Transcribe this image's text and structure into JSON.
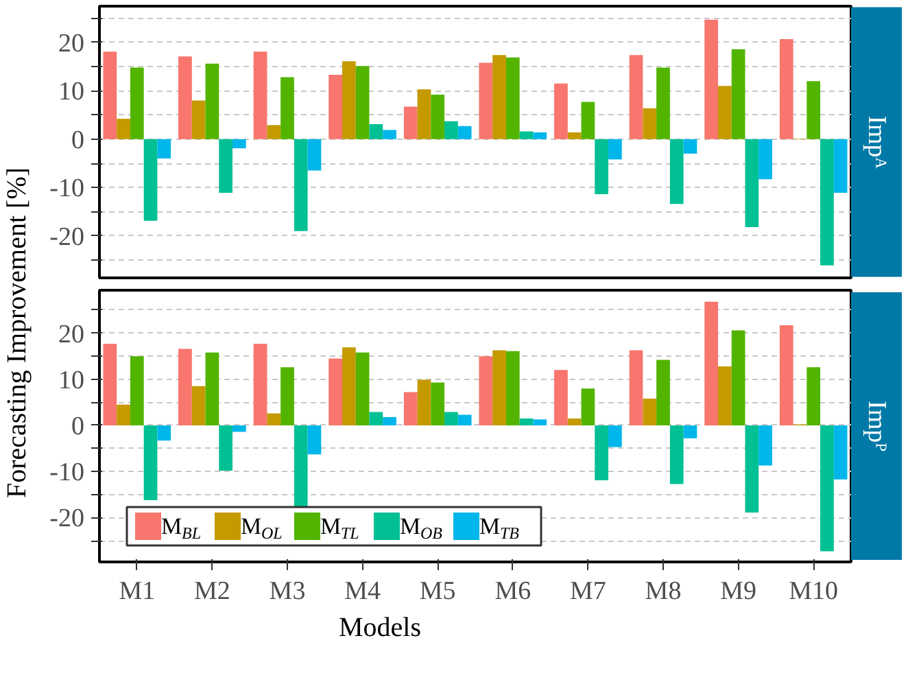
{
  "chart_data": [
    {
      "type": "bar",
      "title": "Impᴬ",
      "ylabel": "Forecasting Improvement [%]",
      "categories": [
        null,
        null,
        null,
        null,
        null,
        null,
        null,
        null,
        null,
        null
      ],
      "series": [
        {
          "color": "#f8766d",
          "values": [
            18.1,
            17.1,
            18.1,
            13.3,
            6.7,
            15.8,
            11.5,
            17.4,
            24.7,
            20.7
          ]
        },
        {
          "color": "#c49a00",
          "values": [
            4.2,
            8.0,
            2.9,
            16.1,
            10.3,
            17.4,
            1.4,
            6.4,
            11.0,
            0.1
          ]
        },
        {
          "color": "#53b400",
          "values": [
            14.8,
            15.6,
            12.8,
            15.1,
            9.2,
            16.9,
            7.7,
            14.8,
            18.6,
            12.0
          ]
        },
        {
          "color": "#00c094",
          "values": [
            -16.9,
            -11.1,
            -19.0,
            3.1,
            3.7,
            1.6,
            -11.4,
            -13.4,
            -18.2,
            -26.1
          ]
        },
        {
          "color": "#00b6eb",
          "values": [
            -4.0,
            -1.9,
            -6.5,
            1.9,
            2.7,
            1.4,
            -4.2,
            -3.0,
            -8.3,
            -11.1
          ]
        }
      ],
      "ylim": [
        -28.7,
        27.5
      ],
      "yticks": [
        {
          "value": -25,
          "label": null
        },
        -20,
        {
          "value": -15,
          "label": null
        },
        -10,
        {
          "value": -5,
          "label": null
        },
        0,
        {
          "value": 5,
          "label": null
        },
        10,
        {
          "value": 15,
          "label": null
        },
        20,
        {
          "value": 25,
          "label": null
        }
      ],
      "grid": "y",
      "tick_labels": "y"
    },
    {
      "type": "bar",
      "title": "Impᴾ",
      "xlabel": "Models",
      "categories": [
        "M1",
        "M2",
        "M3",
        "M4",
        "M5",
        "M6",
        "M7",
        "M8",
        "M9",
        "M10"
      ],
      "series": [
        {
          "name": "M$_{BL}$",
          "color": "#f8766d",
          "values": [
            17.7,
            16.6,
            17.7,
            14.5,
            7.2,
            15.0,
            12.0,
            16.3,
            26.8,
            21.7
          ]
        },
        {
          "name": "M$_{OL}$",
          "color": "#c49a00",
          "values": [
            4.5,
            8.5,
            2.6,
            16.9,
            9.9,
            16.3,
            1.5,
            5.8,
            12.8,
            0.2
          ]
        },
        {
          "name": "M$_{TL}$",
          "color": "#53b400",
          "values": [
            15.0,
            15.8,
            12.6,
            15.8,
            9.3,
            16.1,
            8.0,
            14.2,
            20.6,
            12.6
          ]
        },
        {
          "name": "M$_{OB}$",
          "color": "#00c094",
          "values": [
            -16.2,
            -9.8,
            -18.4,
            2.9,
            2.9,
            1.5,
            -11.9,
            -12.7,
            -18.9,
            -27.3
          ]
        },
        {
          "name": "M$_{TB}$",
          "color": "#00b6eb",
          "values": [
            -3.3,
            -1.4,
            -6.3,
            1.8,
            2.3,
            1.3,
            -4.7,
            -2.8,
            -8.7,
            -11.7
          ]
        }
      ],
      "ylim": [
        -29.6,
        29.3
      ],
      "yticks": [
        {
          "value": -25,
          "label": null
        },
        -20,
        {
          "value": -15,
          "label": null
        },
        -10,
        {
          "value": -5,
          "label": null
        },
        0,
        {
          "value": 5,
          "label": null
        },
        10,
        {
          "value": 15,
          "label": null
        },
        20,
        {
          "value": 25,
          "label": null
        }
      ],
      "grid": "y",
      "legend": "bottom left"
    }
  ]
}
